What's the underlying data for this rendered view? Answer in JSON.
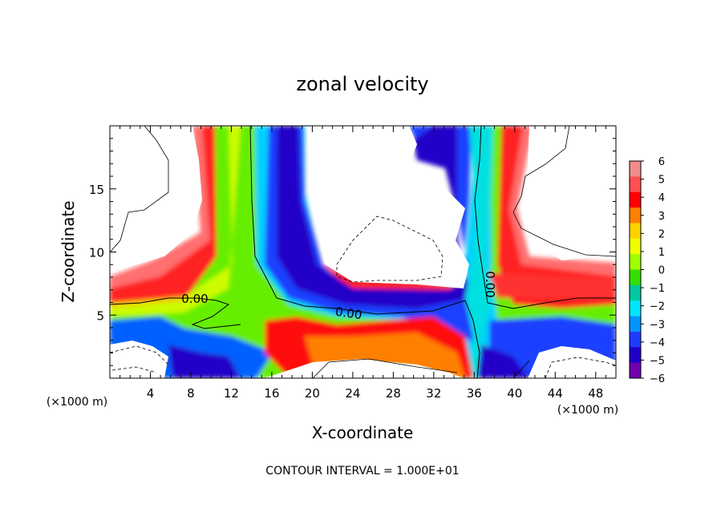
{
  "chart_data": {
    "type": "heatmap",
    "title": "zonal velocity",
    "xlabel": "X-coordinate",
    "ylabel": "Z-coordinate",
    "x_unit_label": "(×1000 m)",
    "y_unit_label": "(×1000 m)",
    "xlim": [
      0,
      50
    ],
    "ylim": [
      0,
      20
    ],
    "x_ticks": [
      4,
      8,
      12,
      16,
      20,
      24,
      28,
      32,
      36,
      40,
      44,
      48
    ],
    "y_ticks": [
      5,
      10,
      15
    ],
    "footer": "CONTOUR INTERVAL = 1.000E+01",
    "colorbar": {
      "levels": [
        6,
        5,
        4,
        3,
        2,
        1,
        0,
        -1,
        -2,
        -3,
        -4,
        -5,
        -6
      ],
      "colors": [
        "#f08c8c",
        "#ff5050",
        "#ff0000",
        "#ff7f00",
        "#ffd200",
        "#f0ff00",
        "#a0ff00",
        "#33e000",
        "#00c8a0",
        "#00e6ff",
        "#0096ff",
        "#1e3cff",
        "#2000c8",
        "#7000b0"
      ]
    },
    "contour_labels": [
      {
        "text": "0.00",
        "x": 6.5,
        "z": 6.0
      },
      {
        "text": "0.00",
        "x": 23.5,
        "z": 5.0
      },
      {
        "text": "0.00",
        "x": 37.0,
        "z": 7.2
      }
    ],
    "grid": false,
    "legend": "colorbar-right"
  }
}
